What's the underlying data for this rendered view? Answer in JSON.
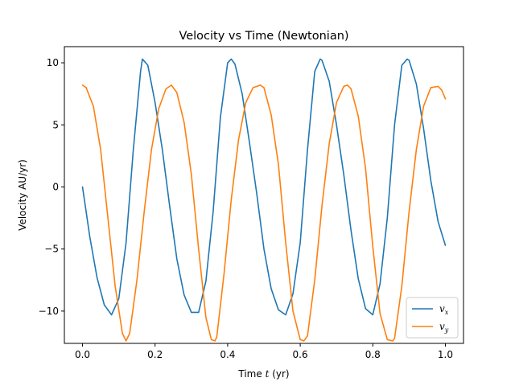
{
  "chart_data": {
    "type": "line",
    "title": "Velocity vs Time (Newtonian)",
    "xlabel_prefix": "Time ",
    "xlabel_var": "t",
    "xlabel_suffix": " (yr)",
    "ylabel": "Velocity AU/yr)",
    "xlim": [
      -0.05,
      1.05
    ],
    "ylim": [
      -12.6,
      11.3
    ],
    "xticks": [
      0.0,
      0.2,
      0.4,
      0.6,
      0.8,
      1.0
    ],
    "xtick_labels": [
      "0.0",
      "0.2",
      "0.4",
      "0.6",
      "0.8",
      "1.0"
    ],
    "yticks": [
      -10,
      -5,
      0,
      5,
      10
    ],
    "ytick_labels": [
      "−10",
      "−5",
      "0",
      "5",
      "10"
    ],
    "grid": false,
    "legend_position": "bottom-right",
    "series": [
      {
        "name": "v_x",
        "legend_var": "v",
        "legend_sub": "x",
        "color": "#1f77b4",
        "x": [
          0.0,
          0.02,
          0.04,
          0.06,
          0.08,
          0.1,
          0.12,
          0.14,
          0.16,
          0.165,
          0.18,
          0.2,
          0.22,
          0.24,
          0.26,
          0.28,
          0.3,
          0.32,
          0.34,
          0.36,
          0.38,
          0.4,
          0.41,
          0.42,
          0.44,
          0.46,
          0.48,
          0.5,
          0.52,
          0.54,
          0.56,
          0.58,
          0.6,
          0.62,
          0.64,
          0.655,
          0.66,
          0.68,
          0.7,
          0.72,
          0.74,
          0.76,
          0.78,
          0.8,
          0.82,
          0.84,
          0.86,
          0.88,
          0.895,
          0.9,
          0.92,
          0.94,
          0.96,
          0.98,
          1.0
        ],
        "y": [
          0.0,
          -4.0,
          -7.3,
          -9.5,
          -10.3,
          -9.0,
          -4.5,
          3.0,
          9.3,
          10.3,
          9.8,
          6.8,
          3.0,
          -1.5,
          -5.8,
          -8.7,
          -10.1,
          -10.1,
          -7.6,
          -2.0,
          5.6,
          10.0,
          10.3,
          9.9,
          7.5,
          3.6,
          -0.5,
          -5.0,
          -8.2,
          -9.9,
          -10.3,
          -8.6,
          -4.5,
          3.0,
          9.3,
          10.3,
          10.2,
          8.5,
          5.0,
          1.0,
          -3.5,
          -7.4,
          -9.8,
          -10.3,
          -7.8,
          -2.5,
          5.0,
          9.8,
          10.3,
          10.2,
          8.3,
          4.7,
          0.5,
          -2.8,
          -4.7
        ]
      },
      {
        "name": "v_y",
        "legend_var": "v",
        "legend_sub": "y",
        "color": "#ff7f0e",
        "x": [
          0.0,
          0.01,
          0.03,
          0.05,
          0.07,
          0.09,
          0.11,
          0.12,
          0.13,
          0.15,
          0.17,
          0.19,
          0.21,
          0.23,
          0.245,
          0.26,
          0.28,
          0.3,
          0.32,
          0.34,
          0.355,
          0.365,
          0.37,
          0.39,
          0.41,
          0.43,
          0.45,
          0.47,
          0.49,
          0.5,
          0.52,
          0.54,
          0.56,
          0.58,
          0.6,
          0.61,
          0.62,
          0.64,
          0.66,
          0.68,
          0.7,
          0.72,
          0.73,
          0.74,
          0.76,
          0.78,
          0.8,
          0.82,
          0.84,
          0.855,
          0.86,
          0.88,
          0.9,
          0.92,
          0.94,
          0.96,
          0.98,
          0.99,
          1.0
        ],
        "y": [
          8.2,
          8.0,
          6.5,
          3.0,
          -2.5,
          -8.0,
          -11.8,
          -12.4,
          -11.8,
          -7.5,
          -2.0,
          3.0,
          6.3,
          7.9,
          8.2,
          7.6,
          5.2,
          1.0,
          -5.0,
          -10.5,
          -12.3,
          -12.4,
          -12.1,
          -7.0,
          -1.0,
          3.8,
          6.8,
          8.0,
          8.2,
          8.0,
          5.8,
          1.8,
          -4.5,
          -10.0,
          -12.3,
          -12.4,
          -12.0,
          -7.5,
          -1.5,
          3.5,
          6.8,
          8.1,
          8.2,
          7.9,
          5.7,
          1.5,
          -4.8,
          -10.2,
          -12.3,
          -12.4,
          -12.2,
          -8.0,
          -2.0,
          3.0,
          6.5,
          8.0,
          8.1,
          7.8,
          7.1
        ]
      }
    ]
  }
}
